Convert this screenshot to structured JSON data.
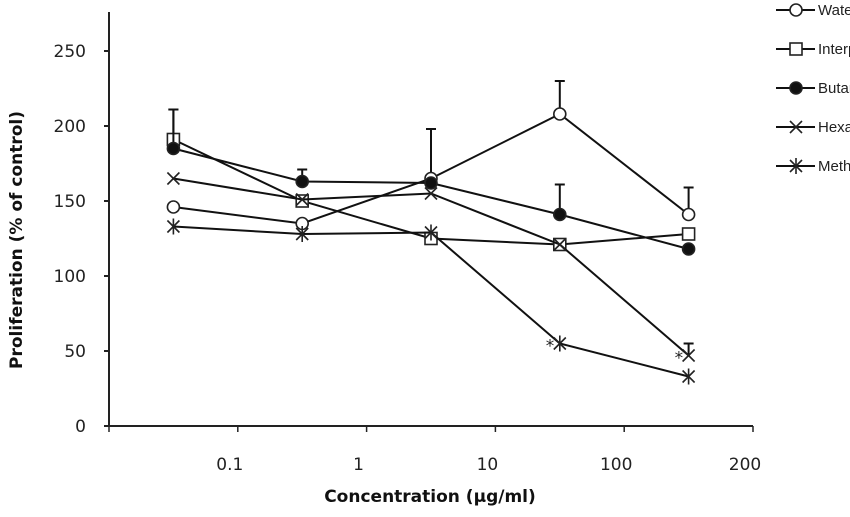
{
  "chart_data": {
    "type": "line",
    "title": "",
    "xlabel": "Concentration (µg/ml)",
    "ylabel": "Proliferation (% of control)",
    "categories": [
      "0.1",
      "1",
      "10",
      "100",
      "200"
    ],
    "ylim": [
      0,
      250
    ],
    "yticks": [
      0,
      50,
      100,
      150,
      200,
      250
    ],
    "grid": false,
    "legend": "top-right",
    "series": [
      {
        "name": "Water",
        "marker": "open-circle",
        "values": [
          146,
          135,
          165,
          208,
          141
        ],
        "err_up": [
          0,
          0,
          33,
          22,
          18
        ]
      },
      {
        "name": "Interphase",
        "marker": "open-square",
        "values": [
          191,
          150,
          125,
          121,
          128
        ],
        "err_up": [
          20,
          0,
          0,
          0,
          0
        ]
      },
      {
        "name": "Butanol",
        "marker": "filled-circle",
        "values": [
          185,
          163,
          162,
          141,
          118
        ],
        "err_up": [
          26,
          8,
          0,
          20,
          0
        ]
      },
      {
        "name": "Hexane",
        "marker": "x",
        "values": [
          165,
          151,
          155,
          121,
          47
        ],
        "err_up": [
          0,
          0,
          0,
          0,
          8
        ]
      },
      {
        "name": "Methanol",
        "marker": "asterisk",
        "values": [
          133,
          128,
          129,
          55,
          33
        ],
        "err_up": [
          0,
          0,
          0,
          0,
          0
        ]
      }
    ],
    "annotations": [
      {
        "text": "*",
        "category": "100",
        "near": "Methanol"
      },
      {
        "text": "*",
        "category": "200",
        "near": "Hexane"
      }
    ]
  }
}
